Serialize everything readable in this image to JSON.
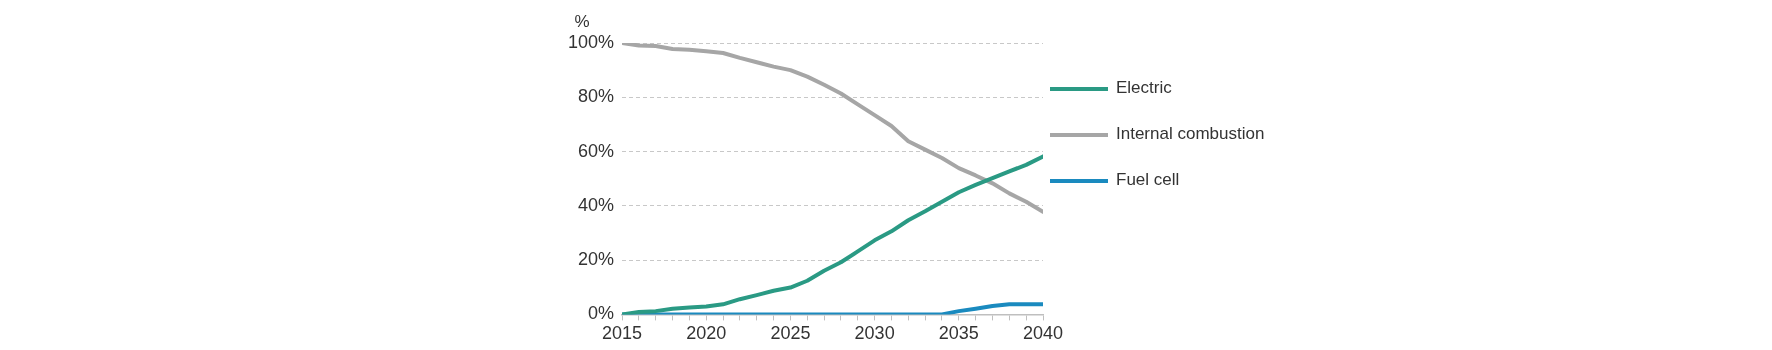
{
  "chart_data": {
    "type": "line",
    "ylabel": "%",
    "legend": "right",
    "grid": "y",
    "marker": "none",
    "line_style": "solid",
    "x": [
      2015,
      2016,
      2017,
      2018,
      2019,
      2020,
      2021,
      2022,
      2023,
      2024,
      2025,
      2026,
      2027,
      2028,
      2029,
      2030,
      2031,
      2032,
      2033,
      2034,
      2035,
      2036,
      2037,
      2038,
      2039,
      2040
    ],
    "xlim": [
      2015,
      2040
    ],
    "xticks": [
      2015,
      {
        "value": 2016,
        "label": null
      },
      {
        "value": 2017,
        "label": null
      },
      {
        "value": 2018,
        "label": null
      },
      {
        "value": 2019,
        "label": null
      },
      2020,
      {
        "value": 2021,
        "label": null
      },
      {
        "value": 2022,
        "label": null
      },
      {
        "value": 2023,
        "label": null
      },
      {
        "value": 2024,
        "label": null
      },
      2025,
      {
        "value": 2026,
        "label": null
      },
      {
        "value": 2027,
        "label": null
      },
      {
        "value": 2028,
        "label": null
      },
      {
        "value": 2029,
        "label": null
      },
      2030,
      {
        "value": 2031,
        "label": null
      },
      {
        "value": 2032,
        "label": null
      },
      {
        "value": 2033,
        "label": null
      },
      {
        "value": 2034,
        "label": null
      },
      2035,
      {
        "value": 2036,
        "label": null
      },
      {
        "value": 2037,
        "label": null
      },
      {
        "value": 2038,
        "label": null
      },
      {
        "value": 2039,
        "label": null
      },
      2040
    ],
    "ylim": [
      0,
      100
    ],
    "yticks": [
      {
        "value": 0,
        "label": "0%"
      },
      {
        "value": 20,
        "label": "20%"
      },
      {
        "value": 40,
        "label": "40%"
      },
      {
        "value": 60,
        "label": "60%"
      },
      {
        "value": 80,
        "label": "80%"
      },
      {
        "value": 100,
        "label": "100%"
      }
    ],
    "series": [
      {
        "name": "Electric",
        "color": "#2a9a84",
        "values": [
          0,
          0.9,
          1.2,
          2.1,
          2.5,
          2.9,
          3.7,
          5.6,
          7.1,
          8.7,
          9.9,
          12.4,
          16.1,
          19.2,
          23.2,
          27.3,
          30.6,
          34.7,
          38,
          41.5,
          45,
          47.7,
          50.2,
          52.7,
          55.1,
          58.2
        ]
      },
      {
        "name": "Internal combustion",
        "color": "#a6a6a6",
        "values": [
          100,
          99.1,
          98.9,
          97.8,
          97.5,
          97,
          96.3,
          94.5,
          92.9,
          91.3,
          90,
          87.6,
          84.6,
          81.4,
          77.4,
          73.4,
          69.4,
          63.8,
          60.7,
          57.6,
          53.9,
          51.2,
          48.3,
          44.6,
          41.5,
          37.8
        ]
      },
      {
        "name": "Fuel cell",
        "color": "#1a8abf",
        "values": [
          0,
          0,
          0,
          0,
          0,
          0,
          0,
          0,
          0,
          0,
          0,
          0,
          0,
          0,
          0,
          0,
          0,
          0,
          0,
          0,
          1.2,
          2.1,
          3.1,
          3.7,
          3.7,
          3.7
        ]
      }
    ]
  }
}
